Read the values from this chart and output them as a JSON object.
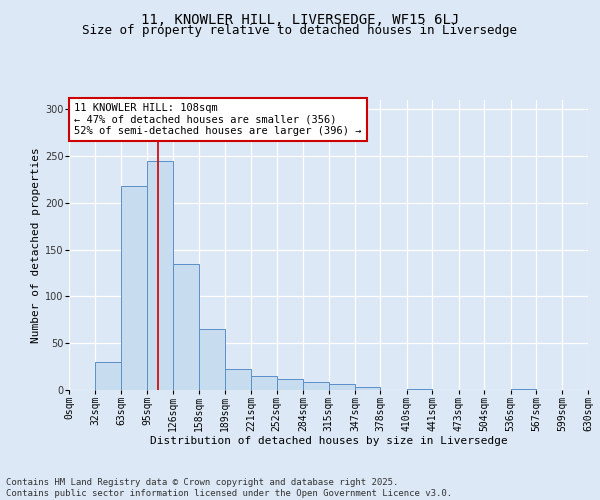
{
  "title": "11, KNOWLER HILL, LIVERSEDGE, WF15 6LJ",
  "subtitle": "Size of property relative to detached houses in Liversedge",
  "xlabel": "Distribution of detached houses by size in Liversedge",
  "ylabel": "Number of detached properties",
  "bin_labels": [
    "0sqm",
    "32sqm",
    "63sqm",
    "95sqm",
    "126sqm",
    "158sqm",
    "189sqm",
    "221sqm",
    "252sqm",
    "284sqm",
    "315sqm",
    "347sqm",
    "378sqm",
    "410sqm",
    "441sqm",
    "473sqm",
    "504sqm",
    "536sqm",
    "567sqm",
    "599sqm",
    "630sqm"
  ],
  "bin_edges": [
    0,
    32,
    63,
    95,
    126,
    158,
    189,
    221,
    252,
    284,
    315,
    347,
    378,
    410,
    441,
    473,
    504,
    536,
    567,
    599,
    630
  ],
  "values": [
    0,
    30,
    218,
    245,
    135,
    65,
    22,
    15,
    12,
    9,
    6,
    3,
    0,
    1,
    0,
    0,
    0,
    1,
    0,
    0
  ],
  "bar_color": "#c8dcf0",
  "bar_edge_color": "#5b8fc9",
  "background_color": "#dce8f5",
  "grid_color": "#ffffff",
  "annotation_box_facecolor": "#ffffff",
  "annotation_border_color": "#cc0000",
  "annotation_text_line1": "11 KNOWLER HILL: 108sqm",
  "annotation_text_line2": "← 47% of detached houses are smaller (356)",
  "annotation_text_line3": "52% of semi-detached houses are larger (396) →",
  "vline_color": "#cc0000",
  "vline_x": 108,
  "ylim": [
    0,
    310
  ],
  "yticks": [
    0,
    50,
    100,
    150,
    200,
    250,
    300
  ],
  "title_fontsize": 10,
  "subtitle_fontsize": 9,
  "axis_label_fontsize": 8,
  "tick_fontsize": 7,
  "annotation_fontsize": 7.5,
  "footer_fontsize": 6.5,
  "footer_line1": "Contains HM Land Registry data © Crown copyright and database right 2025.",
  "footer_line2": "Contains public sector information licensed under the Open Government Licence v3.0."
}
